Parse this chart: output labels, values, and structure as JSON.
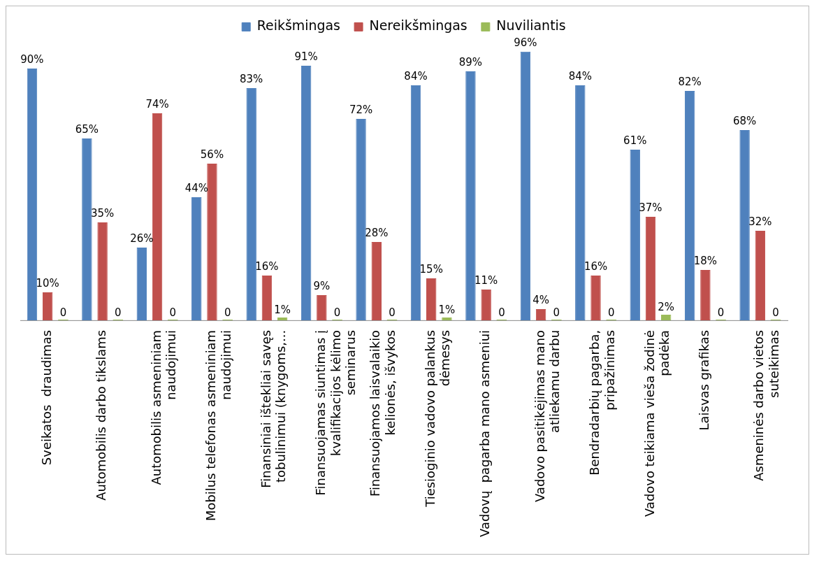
{
  "chart_data": {
    "type": "bar",
    "categories": [
      "Sveikatos  draudimas",
      "Automobilis darbo tikslams",
      "Automobilis asmeniniam naudojimui",
      "Mobilus telefonas asmeniniam naudojimui",
      "Finansiniai ištekliai savęs tobulinimui (knygoms,...",
      "Finansuojamas siuntimas į kvalifikacijos kėlimo seminarus",
      "Finansuojamos laisvalaikio kelionės, išvykos",
      "Tiesioginio vadovo palankus dėmesys",
      "Vadovų  pagarba mano asmeniui",
      "Vadovo pasitikėjimas mano atliekamu darbu",
      "Bendradarbių pagarba, pripažinimas",
      "Vadovo teikiama vieša žodinė padėka",
      "Laisvas grafikas",
      "Asmeninės darbo vietos suteikimas"
    ],
    "series": [
      {
        "name": "Reikšmingas",
        "color": "#4f81bd",
        "values": [
          90,
          65,
          26,
          44,
          83,
          91,
          72,
          84,
          89,
          96,
          84,
          61,
          82,
          68
        ],
        "value_labels": [
          "90%",
          "65%",
          "26%",
          "44%",
          "83%",
          "91%",
          "72%",
          "84%",
          "89%",
          "96%",
          "84%",
          "61%",
          "82%",
          "68%"
        ]
      },
      {
        "name": "Nereikšmingas",
        "color": "#c0504d",
        "values": [
          10,
          35,
          74,
          56,
          16,
          9,
          28,
          15,
          11,
          4,
          16,
          37,
          18,
          32
        ],
        "value_labels": [
          "10%",
          "35%",
          "74%",
          "56%",
          "16%",
          "9%",
          "28%",
          "15%",
          "11%",
          "4%",
          "16%",
          "37%",
          "18%",
          "32%"
        ]
      },
      {
        "name": "Nuviliantis",
        "color": "#9bbb59",
        "values": [
          0,
          0,
          0,
          0,
          1,
          0,
          0,
          1,
          0,
          0,
          0,
          2,
          0,
          0
        ],
        "value_labels": [
          "0",
          "0",
          "0",
          "0",
          "1%",
          "0",
          "0",
          "1%",
          "0",
          "0",
          "0",
          "2%",
          "0",
          "0"
        ]
      }
    ],
    "legend": "top",
    "grid": false,
    "tick_labels": "x"
  }
}
